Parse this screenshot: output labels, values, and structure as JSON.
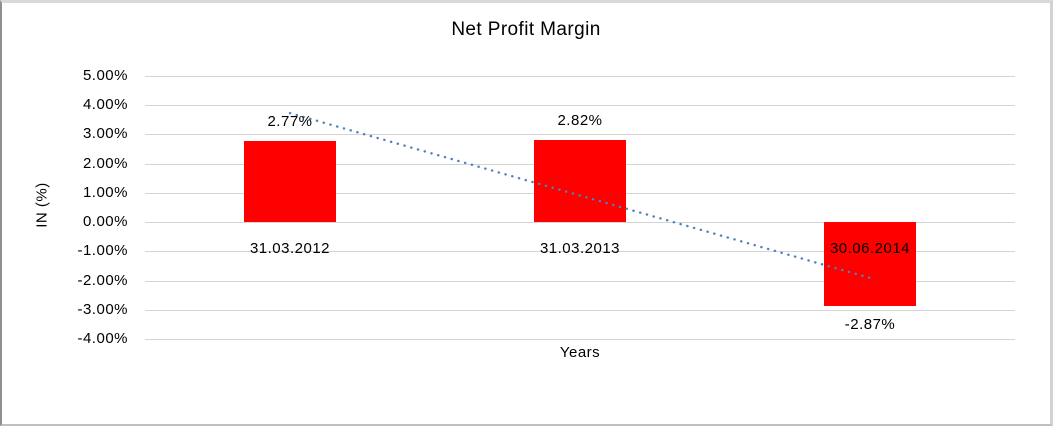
{
  "chart_data": {
    "type": "bar",
    "title": "Net Profit Margin",
    "xlabel": "Years",
    "ylabel": "IN (%)",
    "categories": [
      "31.03.2012",
      "31.03.2013",
      "30.06.2014"
    ],
    "series": [
      {
        "name": "Net Profit Margin",
        "values": [
          2.77,
          2.82,
          -2.87
        ],
        "data_labels": [
          "2.77%",
          "2.82%",
          "-2.87%"
        ],
        "color": "#ff0000"
      }
    ],
    "y_axis": {
      "tick_labels": [
        "5.00%",
        "4.00%",
        "3.00%",
        "2.00%",
        "1.00%",
        "0.00%",
        "-1.00%",
        "-2.00%",
        "-3.00%",
        "-4.00%"
      ],
      "tick_values": [
        5,
        4,
        3,
        2,
        1,
        0,
        -1,
        -2,
        -3,
        -4
      ],
      "min": -4,
      "max": 5
    },
    "grid": true,
    "gridline_color": "#d4d4d4",
    "legend": "none",
    "trendline": {
      "type": "linear",
      "style": "dotted",
      "color": "#4f81bd",
      "start_value": 3.73,
      "end_value": -1.91
    }
  }
}
